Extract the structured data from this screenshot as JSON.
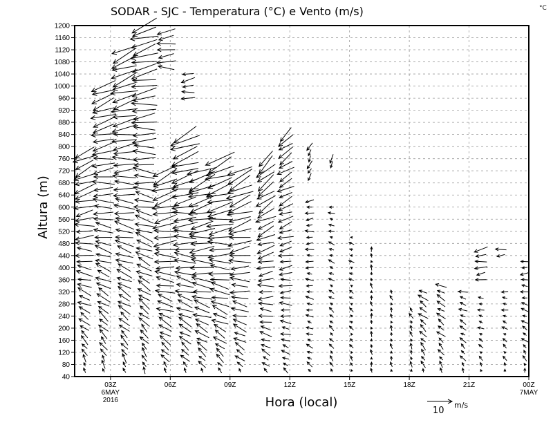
{
  "chart_data": {
    "type": "wind-vector profile (time-height)",
    "title": "SODAR - SJC - Temperatura (°C) e Vento (m/s)",
    "corner_unit": "°C",
    "xlabel": "Hora (local)",
    "ylabel": "Altura (m)",
    "xlim": [
      1.2,
      24
    ],
    "ylim": [
      40,
      1200
    ],
    "grid": true,
    "y_ticks": [
      40,
      80,
      120,
      160,
      200,
      240,
      280,
      320,
      360,
      400,
      440,
      480,
      520,
      560,
      600,
      640,
      680,
      720,
      760,
      800,
      840,
      880,
      920,
      960,
      1000,
      1040,
      1080,
      1120,
      1160,
      1200
    ],
    "x_ticks": [
      {
        "hour": 3,
        "label": "03Z",
        "sub1": "6MAY",
        "sub2": "2016"
      },
      {
        "hour": 6,
        "label": "06Z"
      },
      {
        "hour": 9,
        "label": "09Z"
      },
      {
        "hour": 12,
        "label": "12Z"
      },
      {
        "hour": 15,
        "label": "15Z"
      },
      {
        "hour": 18,
        "label": "18Z"
      },
      {
        "hour": 21,
        "label": "21Z"
      },
      {
        "hour": 24,
        "label": "00Z",
        "sub1": "7MAY"
      }
    ],
    "reference_vector": {
      "speed": 10,
      "label": "10",
      "unit": "m/s"
    },
    "level_step_m": 20,
    "columns_note": "each column: hour, bottom_m, top_m, dir_low_deg, dir_high_deg, speed_low, speed_high (dir = direction arrow points, math degrees)",
    "columns": [
      [
        1.7,
        60,
        780,
        100,
        210,
        1.5,
        9
      ],
      [
        2.65,
        60,
        1000,
        105,
        205,
        2,
        10
      ],
      [
        3.7,
        60,
        1120,
        110,
        205,
        2,
        11
      ],
      [
        4.7,
        60,
        1200,
        110,
        200,
        2,
        11
      ],
      [
        5.75,
        60,
        720,
        115,
        205,
        2,
        11
      ],
      [
        5.8,
        1060,
        1180,
        180,
        190,
        7,
        7
      ],
      [
        6.75,
        60,
        840,
        120,
        205,
        2,
        12
      ],
      [
        6.9,
        960,
        1040,
        185,
        190,
        5,
        5
      ],
      [
        7.6,
        60,
        720,
        120,
        205,
        2,
        12
      ],
      [
        8.5,
        60,
        760,
        120,
        205,
        2,
        12
      ],
      [
        9.5,
        60,
        720,
        125,
        210,
        2,
        11
      ],
      [
        10.8,
        60,
        760,
        130,
        225,
        2,
        9
      ],
      [
        11.8,
        60,
        840,
        140,
        220,
        2,
        7
      ],
      [
        13.0,
        60,
        620,
        140,
        190,
        2,
        3
      ],
      [
        13.0,
        700,
        800,
        240,
        245,
        3,
        3
      ],
      [
        14.1,
        60,
        600,
        110,
        170,
        2,
        2
      ],
      [
        14.1,
        740,
        760,
        260,
        260,
        3,
        3
      ],
      [
        15.1,
        60,
        500,
        100,
        170,
        1.5,
        1.5
      ],
      [
        16.1,
        60,
        460,
        95,
        100,
        1.5,
        1.5
      ],
      [
        17.1,
        60,
        320,
        95,
        110,
        1.5,
        1.5
      ],
      [
        18.1,
        60,
        270,
        95,
        120,
        1.5,
        2
      ],
      [
        18.7,
        60,
        320,
        110,
        150,
        2,
        4
      ],
      [
        19.6,
        60,
        340,
        115,
        155,
        2,
        4
      ],
      [
        20.7,
        60,
        320,
        110,
        165,
        2,
        3
      ],
      [
        21.6,
        60,
        300,
        105,
        175,
        1.5,
        2
      ],
      [
        21.6,
        360,
        470,
        185,
        190,
        4,
        5
      ],
      [
        22.8,
        60,
        320,
        95,
        180,
        1.5,
        2
      ],
      [
        22.6,
        440,
        460,
        185,
        185,
        4,
        4
      ],
      [
        23.8,
        60,
        420,
        95,
        190,
        1.5,
        3
      ]
    ]
  }
}
